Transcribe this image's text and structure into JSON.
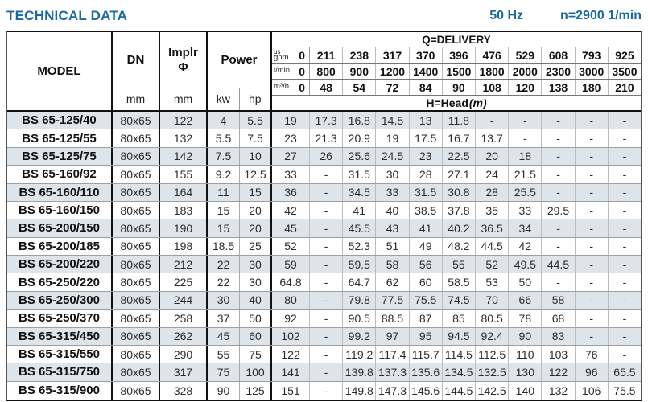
{
  "colors": {
    "accent_blue": "#1a699f",
    "row_stripe": "#dde4ea",
    "border_dark": "#111111"
  },
  "header": {
    "title": "TECHNICAL DATA",
    "frequency": "50 Hz",
    "speed": "n=2900 1/min"
  },
  "table": {
    "model_label": "MODEL",
    "dn_label": "DN",
    "dn_unit": "mm",
    "impeller_label": "Implr",
    "impeller_symbol": "Φ",
    "impeller_unit": "mm",
    "power_label": "Power",
    "power_unit_kw": "kw",
    "power_unit_hp": "hp",
    "delivery_label": "Q=DELIVERY",
    "head_label": "H=Head",
    "head_unit": "(m)",
    "flow_units": [
      {
        "label_top": "us",
        "label": "gpm",
        "values": [
          "0",
          "211",
          "238",
          "317",
          "370",
          "396",
          "476",
          "529",
          "608",
          "793",
          "925"
        ]
      },
      {
        "label_top": "",
        "label": "l/min",
        "values": [
          "0",
          "800",
          "900",
          "1200",
          "1400",
          "1500",
          "1800",
          "2000",
          "2300",
          "3000",
          "3500"
        ]
      },
      {
        "label_top": "",
        "label": "m³/h",
        "values": [
          "0",
          "48",
          "54",
          "72",
          "84",
          "90",
          "108",
          "120",
          "138",
          "180",
          "210"
        ]
      }
    ],
    "rows": [
      {
        "model": "BS 65-125/40",
        "dn": "80x65",
        "impeller": "122",
        "kw": "4",
        "hp": "5.5",
        "head": [
          "19",
          "17.3",
          "16.8",
          "14.5",
          "13",
          "11.8",
          "-",
          "-",
          "-",
          "-",
          "-"
        ]
      },
      {
        "model": "BS 65-125/55",
        "dn": "80x65",
        "impeller": "132",
        "kw": "5.5",
        "hp": "7.5",
        "head": [
          "23",
          "21.3",
          "20.9",
          "19",
          "17.5",
          "16.7",
          "13.7",
          "-",
          "-",
          "-",
          "-"
        ]
      },
      {
        "model": "BS 65-125/75",
        "dn": "80x65",
        "impeller": "142",
        "kw": "7.5",
        "hp": "10",
        "head": [
          "27",
          "26",
          "25.6",
          "24.5",
          "23",
          "22.5",
          "20",
          "18",
          "-",
          "-",
          "-"
        ]
      },
      {
        "model": "BS 65-160/92",
        "dn": "80x65",
        "impeller": "155",
        "kw": "9.2",
        "hp": "12.5",
        "head": [
          "33",
          "-",
          "31.5",
          "30",
          "28",
          "27.1",
          "24",
          "21.5",
          "-",
          "-",
          "-"
        ]
      },
      {
        "model": "BS 65-160/110",
        "dn": "80x65",
        "impeller": "164",
        "kw": "11",
        "hp": "15",
        "head": [
          "36",
          "-",
          "34.5",
          "33",
          "31.5",
          "30.8",
          "28",
          "25.5",
          "-",
          "-",
          "-"
        ]
      },
      {
        "model": "BS 65-160/150",
        "dn": "80x65",
        "impeller": "183",
        "kw": "15",
        "hp": "20",
        "head": [
          "42",
          "-",
          "41",
          "40",
          "38.5",
          "37.8",
          "35",
          "33",
          "29.5",
          "-",
          "-"
        ]
      },
      {
        "model": "BS 65-200/150",
        "dn": "80x65",
        "impeller": "190",
        "kw": "15",
        "hp": "20",
        "head": [
          "45",
          "-",
          "45.5",
          "43",
          "41",
          "40.2",
          "36.5",
          "34",
          "-",
          "-",
          "-"
        ]
      },
      {
        "model": "BS 65-200/185",
        "dn": "80x65",
        "impeller": "198",
        "kw": "18.5",
        "hp": "25",
        "head": [
          "52",
          "-",
          "52.3",
          "51",
          "49",
          "48.2",
          "44.5",
          "42",
          "-",
          "-",
          "-"
        ]
      },
      {
        "model": "BS 65-200/220",
        "dn": "80x65",
        "impeller": "212",
        "kw": "22",
        "hp": "30",
        "head": [
          "59",
          "-",
          "59.5",
          "58",
          "56",
          "55",
          "52",
          "49.5",
          "44.5",
          "-",
          "-"
        ]
      },
      {
        "model": "BS 65-250/220",
        "dn": "80x65",
        "impeller": "225",
        "kw": "22",
        "hp": "30",
        "head": [
          "64.8",
          "-",
          "64.7",
          "62",
          "60",
          "58.5",
          "53",
          "50",
          "-",
          "-",
          "-"
        ]
      },
      {
        "model": "BS 65-250/300",
        "dn": "80x65",
        "impeller": "244",
        "kw": "30",
        "hp": "40",
        "head": [
          "80",
          "-",
          "79.8",
          "77.5",
          "75.5",
          "74.5",
          "70",
          "66",
          "58",
          "-",
          "-"
        ]
      },
      {
        "model": "BS 65-250/370",
        "dn": "80x65",
        "impeller": "258",
        "kw": "37",
        "hp": "50",
        "head": [
          "92",
          "-",
          "90.5",
          "88.5",
          "87",
          "85",
          "80.5",
          "78",
          "68",
          "-",
          "-"
        ]
      },
      {
        "model": "BS 65-315/450",
        "dn": "80x65",
        "impeller": "262",
        "kw": "45",
        "hp": "60",
        "head": [
          "102",
          "-",
          "99.2",
          "97",
          "95",
          "94.5",
          "92.4",
          "90",
          "83",
          "-",
          "-"
        ]
      },
      {
        "model": "BS 65-315/550",
        "dn": "80x65",
        "impeller": "290",
        "kw": "55",
        "hp": "75",
        "head": [
          "122",
          "-",
          "119.2",
          "117.4",
          "115.7",
          "114.5",
          "112.5",
          "110",
          "103",
          "76",
          "-"
        ]
      },
      {
        "model": "BS 65-315/750",
        "dn": "80x65",
        "impeller": "317",
        "kw": "75",
        "hp": "100",
        "head": [
          "141",
          "-",
          "139.8",
          "137.3",
          "135.6",
          "134.5",
          "132.5",
          "130",
          "122",
          "96",
          "65.5"
        ]
      },
      {
        "model": "BS 65-315/900",
        "dn": "80x65",
        "impeller": "328",
        "kw": "90",
        "hp": "125",
        "head": [
          "151",
          "-",
          "149.8",
          "147.3",
          "145.6",
          "144.5",
          "142.5",
          "140",
          "132",
          "106",
          "75.5"
        ]
      }
    ]
  }
}
